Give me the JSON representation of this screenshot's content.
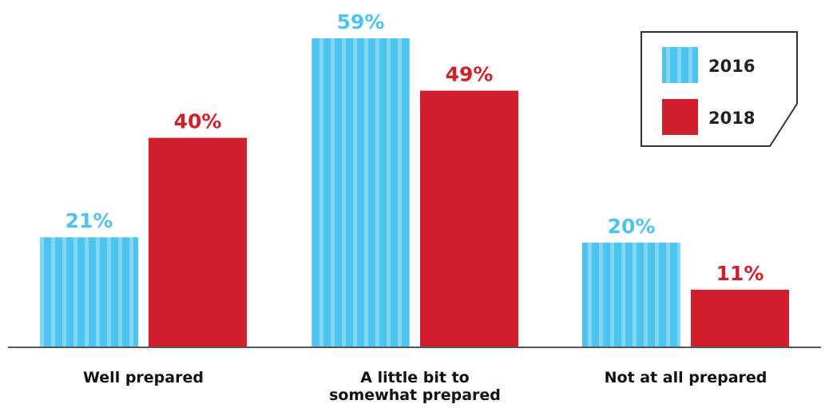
{
  "chart_data": {
    "type": "bar",
    "categories": [
      [
        "Well prepared"
      ],
      [
        "A little bit to",
        "somewhat prepared"
      ],
      [
        "Not at all prepared"
      ]
    ],
    "series": [
      {
        "name": "2016",
        "values": [
          21,
          59,
          20
        ],
        "labels": [
          "21%",
          "59%",
          "20%"
        ]
      },
      {
        "name": "2018",
        "values": [
          40,
          49,
          11
        ],
        "labels": [
          "40%",
          "49%",
          "11%"
        ]
      }
    ],
    "ylim": [
      0,
      65
    ],
    "legend_position": "top-right",
    "grid": false,
    "title": "",
    "xlabel": "",
    "ylabel": ""
  },
  "colors": {
    "series_2016": "#4DC3EF",
    "series_2016_stripe": "#7FD6F5",
    "series_2018": "#D0202B",
    "label_2016": "#4DC3EF",
    "label_2018": "#D0202B",
    "axis": "#555555",
    "legend_border": "#333333"
  }
}
